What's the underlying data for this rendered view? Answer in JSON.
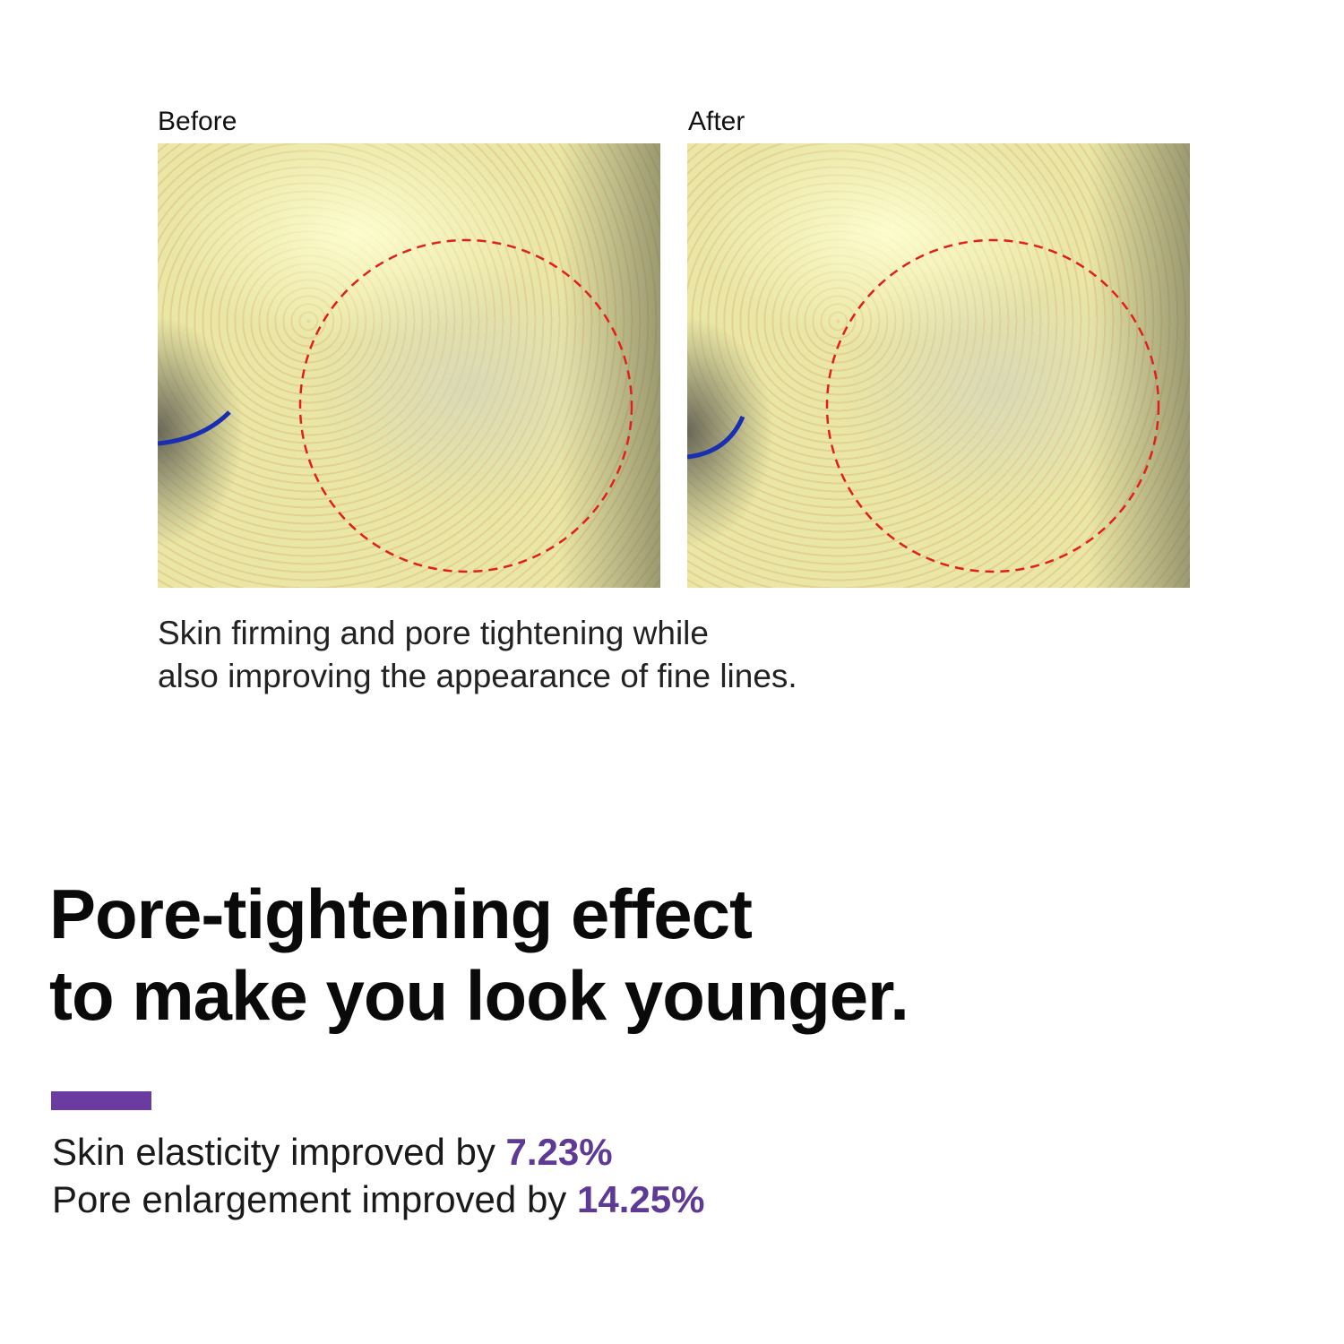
{
  "comparison": {
    "before_label": "Before",
    "after_label": "After",
    "caption_line1": "Skin firming and pore tightening while",
    "caption_line2": "also improving the appearance of fine lines.",
    "highlight_color": "#e0201c"
  },
  "headline": {
    "line1": "Pore-tightening effect",
    "line2": "to make you look younger."
  },
  "accent_color": "#6a3ba0",
  "stats": [
    {
      "text": "Skin elasticity improved by ",
      "value": "7.23%"
    },
    {
      "text": "Pore enlargement improved by ",
      "value": "14.25%"
    }
  ]
}
